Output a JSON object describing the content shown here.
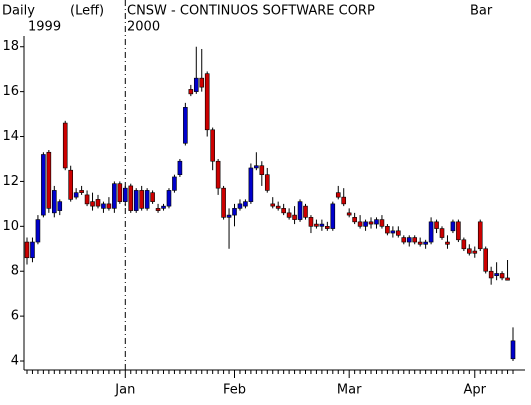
{
  "chart_data": {
    "type": "candlestick",
    "period": "Daily",
    "scale_note": "(Leff)",
    "title": "CNSW - CONTINUOS SOFTWARE CORP",
    "style": "Bar",
    "years": [
      "1999",
      "2000"
    ],
    "categories": [
      null,
      null,
      null,
      null,
      null,
      null,
      null,
      null,
      null,
      null,
      null,
      null,
      null,
      null,
      null,
      null,
      null,
      null,
      "Jan",
      null,
      null,
      null,
      null,
      null,
      null,
      null,
      null,
      null,
      null,
      null,
      null,
      null,
      null,
      null,
      null,
      null,
      null,
      null,
      "Feb",
      null,
      null,
      null,
      null,
      null,
      null,
      null,
      null,
      null,
      null,
      null,
      null,
      null,
      null,
      null,
      null,
      null,
      null,
      null,
      null,
      "Mar",
      null,
      null,
      null,
      null,
      null,
      null,
      null,
      null,
      null,
      null,
      null,
      null,
      null,
      null,
      null,
      null,
      null,
      null,
      null,
      null,
      null,
      null,
      "Apr",
      null,
      null,
      null,
      null,
      null,
      null,
      null
    ],
    "open": [
      9.3,
      8.6,
      9.3,
      10.5,
      13.3,
      10.6,
      10.7,
      14.6,
      12.5,
      11.3,
      11.6,
      11.4,
      11.1,
      11.2,
      10.8,
      11.0,
      10.8,
      11.9,
      11.1,
      11.8,
      10.7,
      11.6,
      10.8,
      11.5,
      10.8,
      10.8,
      10.9,
      11.6,
      12.3,
      13.7,
      16.1,
      16.0,
      16.6,
      16.8,
      14.3,
      12.9,
      11.7,
      10.4,
      10.5,
      10.8,
      10.9,
      11.1,
      12.6,
      12.7,
      12.3,
      11.0,
      10.9,
      10.8,
      10.6,
      10.5,
      10.3,
      10.9,
      10.4,
      10.1,
      10.0,
      10.0,
      9.9,
      11.5,
      11.3,
      10.6,
      10.4,
      10.2,
      10.0,
      10.2,
      10.1,
      10.3,
      10.0,
      9.7,
      9.8,
      9.5,
      9.3,
      9.5,
      9.3,
      9.2,
      9.3,
      10.2,
      9.9,
      9.3,
      9.8,
      10.2,
      9.4,
      9.0,
      8.9,
      10.2,
      9.0,
      8.0,
      7.8,
      7.9,
      7.7,
      4.1
    ],
    "high": [
      9.5,
      9.5,
      10.5,
      13.3,
      13.4,
      11.8,
      11.2,
      14.7,
      12.7,
      11.7,
      11.8,
      11.6,
      11.5,
      11.4,
      11.1,
      11.3,
      12.0,
      12.0,
      11.8,
      11.9,
      11.7,
      11.8,
      11.7,
      11.6,
      11.0,
      11.0,
      11.7,
      12.3,
      13.0,
      15.5,
      16.3,
      18.0,
      17.9,
      16.9,
      14.4,
      13.0,
      11.8,
      10.8,
      11.0,
      11.2,
      11.2,
      12.8,
      13.3,
      12.9,
      12.6,
      11.3,
      11.1,
      11.0,
      10.8,
      10.9,
      11.2,
      11.0,
      10.5,
      10.3,
      10.3,
      10.2,
      11.1,
      11.8,
      11.7,
      10.8,
      10.6,
      10.5,
      10.3,
      10.4,
      10.4,
      10.5,
      10.1,
      10.0,
      10.0,
      9.6,
      9.6,
      9.6,
      9.5,
      9.4,
      10.4,
      10.3,
      10.0,
      9.6,
      10.3,
      10.3,
      9.5,
      9.2,
      9.1,
      10.3,
      9.1,
      8.2,
      8.4,
      8.0,
      8.5,
      5.5
    ],
    "low": [
      8.3,
      8.4,
      9.2,
      10.4,
      10.6,
      10.4,
      10.5,
      12.5,
      11.1,
      11.2,
      11.4,
      10.9,
      10.7,
      10.8,
      10.6,
      10.7,
      10.6,
      11.0,
      10.9,
      10.6,
      10.6,
      10.7,
      10.7,
      11.0,
      10.6,
      10.7,
      10.8,
      11.5,
      12.2,
      13.6,
      15.8,
      15.9,
      16.0,
      14.0,
      12.5,
      11.4,
      10.3,
      9.0,
      10.0,
      10.7,
      10.8,
      11.0,
      12.5,
      11.8,
      11.5,
      10.8,
      10.7,
      10.5,
      10.3,
      10.1,
      10.2,
      10.3,
      9.7,
      9.9,
      9.8,
      9.8,
      9.8,
      11.2,
      10.9,
      10.4,
      10.1,
      9.9,
      9.8,
      9.9,
      9.9,
      9.9,
      9.6,
      9.5,
      9.5,
      9.2,
      9.1,
      9.2,
      9.1,
      9.0,
      9.2,
      9.7,
      9.4,
      9.0,
      9.7,
      9.3,
      8.9,
      8.7,
      8.6,
      8.9,
      7.9,
      7.4,
      7.6,
      7.6,
      7.6,
      4.0
    ],
    "close": [
      8.6,
      9.3,
      10.3,
      13.2,
      10.8,
      11.6,
      11.1,
      12.6,
      11.2,
      11.5,
      11.5,
      11.0,
      10.9,
      10.9,
      11.0,
      10.8,
      11.9,
      11.1,
      11.7,
      10.7,
      11.6,
      10.8,
      11.6,
      11.1,
      10.7,
      10.9,
      11.6,
      12.2,
      12.9,
      15.3,
      15.9,
      16.6,
      16.2,
      14.3,
      12.9,
      11.7,
      10.4,
      10.5,
      10.8,
      11.0,
      11.1,
      12.6,
      12.7,
      12.3,
      11.6,
      10.9,
      10.8,
      10.6,
      10.4,
      10.3,
      11.1,
      10.4,
      10.0,
      10.0,
      10.1,
      9.9,
      11.0,
      11.3,
      11.0,
      10.5,
      10.2,
      10.0,
      10.2,
      10.1,
      10.3,
      10.0,
      9.7,
      9.8,
      9.6,
      9.3,
      9.5,
      9.3,
      9.2,
      9.3,
      10.2,
      9.9,
      9.5,
      9.2,
      10.2,
      9.4,
      9.0,
      8.8,
      8.8,
      9.0,
      8.0,
      7.7,
      7.9,
      7.7,
      7.6,
      4.9
    ],
    "up_color": "#0000cc",
    "down_color": "#cc0000",
    "ylim": [
      3.6,
      18.3
    ],
    "yticks": [
      4,
      6,
      8,
      10,
      12,
      14,
      16,
      18
    ]
  }
}
